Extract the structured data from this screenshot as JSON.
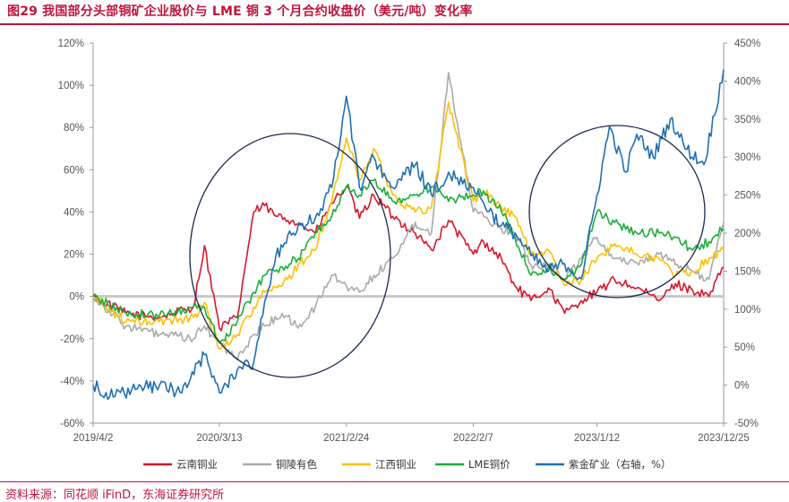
{
  "title": "图29  我国部分头部铜矿企业股价与 LME 铜 3 个月合约收盘价（美元/吨）变化率",
  "source": "资料来源：同花顺 iFinD，东海证券研究所",
  "colors": {
    "title": "#C0143C",
    "yunnan": "#D9172A",
    "tongling": "#AAAAAA",
    "jiangxi": "#FFC000",
    "lme": "#1AAE3A",
    "zijin": "#1F6FB4",
    "zero_line": "#C8C8C8",
    "circle": "#1A2A50"
  },
  "chart_data": {
    "type": "line",
    "x_ticks": [
      "2019/4/2",
      "2020/3/13",
      "2021/2/24",
      "2022/2/7",
      "2023/1/12",
      "2023/12/25"
    ],
    "x_range": [
      "2019/4/2",
      "2023/12/25"
    ],
    "y_left": {
      "ticks": [
        "120%",
        "100%",
        "80%",
        "60%",
        "40%",
        "20%",
        "0%",
        "-20%",
        "-40%",
        "-60%"
      ],
      "ylim": [
        -60,
        120
      ]
    },
    "y_right": {
      "ticks": [
        "450%",
        "400%",
        "350%",
        "300%",
        "250%",
        "200%",
        "150%",
        "100%",
        "50%",
        "0%",
        "-50%"
      ],
      "ylim": [
        -50,
        450
      ]
    },
    "grid": false,
    "legend_position": "bottom",
    "annotations": [
      "circle around 2020/3/13–2021/2/24",
      "circle around 2023/1/12–2023/12/25"
    ],
    "series": [
      {
        "name": "云南铜业",
        "axis": "left",
        "color_key": "yunnan",
        "x": [
          "2019/4/2",
          "2019/7/1",
          "2019/10/1",
          "2020/1/2",
          "2020/2/1",
          "2020/3/13",
          "2020/5/1",
          "2020/6/15",
          "2020/7/15",
          "2020/8/15",
          "2020/10/1",
          "2020/12/1",
          "2021/1/15",
          "2021/2/24",
          "2021/4/1",
          "2021/5/10",
          "2021/7/1",
          "2021/9/1",
          "2021/10/15",
          "2021/12/1",
          "2022/2/7",
          "2022/3/7",
          "2022/4/25",
          "2022/6/1",
          "2022/7/15",
          "2022/9/1",
          "2022/10/15",
          "2022/11/30",
          "2023/1/12",
          "2023/3/1",
          "2023/5/1",
          "2023/7/1",
          "2023/8/15",
          "2023/10/1",
          "2023/11/15",
          "2023/12/25"
        ],
        "y": [
          0,
          -8,
          -10,
          -5,
          24,
          -15,
          -10,
          40,
          43,
          38,
          36,
          30,
          44,
          52,
          37,
          48,
          38,
          30,
          22,
          36,
          20,
          26,
          18,
          5,
          -2,
          4,
          -8,
          -2,
          2,
          8,
          4,
          -2,
          6,
          3,
          0,
          14
        ]
      },
      {
        "name": "铜陵有色",
        "axis": "left",
        "color_key": "tongling",
        "x": [
          "2019/4/2",
          "2019/7/1",
          "2019/10/1",
          "2020/1/2",
          "2020/2/1",
          "2020/3/13",
          "2020/5/1",
          "2020/6/15",
          "2020/7/15",
          "2020/9/1",
          "2020/10/15",
          "2020/12/1",
          "2021/1/15",
          "2021/2/24",
          "2021/4/1",
          "2021/5/10",
          "2021/7/1",
          "2021/9/1",
          "2021/10/15",
          "2021/12/1",
          "2022/2/7",
          "2022/3/7",
          "2022/4/25",
          "2022/6/1",
          "2022/7/15",
          "2022/9/1",
          "2022/10/15",
          "2022/11/30",
          "2023/1/12",
          "2023/3/1",
          "2023/5/1",
          "2023/7/1",
          "2023/8/15",
          "2023/10/1",
          "2023/11/15",
          "2023/12/25"
        ],
        "y": [
          0,
          -14,
          -18,
          -20,
          -14,
          -22,
          -30,
          -18,
          -14,
          -8,
          -15,
          -5,
          10,
          5,
          2,
          10,
          18,
          35,
          30,
          106,
          40,
          38,
          32,
          30,
          15,
          15,
          8,
          18,
          28,
          18,
          16,
          20,
          15,
          12,
          8,
          35
        ]
      },
      {
        "name": "江西铜业",
        "axis": "left",
        "color_key": "jiangxi",
        "x": [
          "2019/4/2",
          "2019/7/1",
          "2019/10/1",
          "2020/1/2",
          "2020/2/1",
          "2020/3/13",
          "2020/5/1",
          "2020/6/15",
          "2020/7/15",
          "2020/9/1",
          "2020/10/15",
          "2020/12/1",
          "2021/1/15",
          "2021/2/24",
          "2021/4/1",
          "2021/5/10",
          "2021/7/1",
          "2021/9/1",
          "2021/10/15",
          "2021/12/1",
          "2022/2/7",
          "2022/3/7",
          "2022/4/25",
          "2022/6/1",
          "2022/7/15",
          "2022/9/1",
          "2022/10/15",
          "2022/11/30",
          "2023/1/12",
          "2023/3/1",
          "2023/5/1",
          "2023/7/1",
          "2023/8/15",
          "2023/10/1",
          "2023/11/15",
          "2023/12/25"
        ],
        "y": [
          0,
          -12,
          -12,
          -10,
          -3,
          -25,
          -18,
          -5,
          2,
          5,
          15,
          22,
          45,
          75,
          55,
          70,
          48,
          40,
          42,
          92,
          45,
          50,
          42,
          38,
          20,
          22,
          5,
          8,
          18,
          25,
          20,
          18,
          10,
          12,
          18,
          22
        ]
      },
      {
        "name": "LME铜价",
        "axis": "left",
        "color_key": "lme",
        "x": [
          "2019/4/2",
          "2019/7/1",
          "2019/10/1",
          "2020/1/2",
          "2020/2/1",
          "2020/3/13",
          "2020/5/1",
          "2020/6/15",
          "2020/7/15",
          "2020/9/1",
          "2020/10/15",
          "2020/12/1",
          "2021/1/15",
          "2021/2/24",
          "2021/4/1",
          "2021/5/10",
          "2021/7/1",
          "2021/9/1",
          "2021/10/15",
          "2021/12/1",
          "2022/2/7",
          "2022/3/7",
          "2022/4/25",
          "2022/6/1",
          "2022/7/15",
          "2022/9/1",
          "2022/10/15",
          "2022/11/30",
          "2023/1/12",
          "2023/3/1",
          "2023/5/1",
          "2023/7/1",
          "2023/8/15",
          "2023/10/1",
          "2023/11/15",
          "2023/12/25"
        ],
        "y": [
          0,
          -8,
          -9,
          -5,
          -5,
          -22,
          -12,
          2,
          10,
          14,
          18,
          30,
          38,
          52,
          48,
          55,
          45,
          48,
          52,
          45,
          48,
          50,
          40,
          28,
          10,
          14,
          8,
          15,
          40,
          35,
          30,
          30,
          28,
          22,
          26,
          32
        ]
      },
      {
        "name": "紫金矿业（右轴，%）",
        "axis": "right",
        "color_key": "zijin",
        "x": [
          "2019/4/2",
          "2019/6/1",
          "2019/8/1",
          "2019/10/1",
          "2019/12/1",
          "2020/2/1",
          "2020/3/13",
          "2020/5/1",
          "2020/6/15",
          "2020/7/15",
          "2020/8/15",
          "2020/10/1",
          "2020/12/1",
          "2021/1/15",
          "2021/2/24",
          "2021/4/1",
          "2021/5/10",
          "2021/7/1",
          "2021/9/1",
          "2021/10/15",
          "2021/12/1",
          "2022/2/7",
          "2022/3/7",
          "2022/4/25",
          "2022/6/1",
          "2022/7/15",
          "2022/9/1",
          "2022/10/15",
          "2022/11/30",
          "2023/1/12",
          "2023/2/15",
          "2023/4/1",
          "2023/5/1",
          "2023/6/15",
          "2023/8/1",
          "2023/9/15",
          "2023/11/1",
          "2023/12/25"
        ],
        "y": [
          0,
          -15,
          -5,
          0,
          -10,
          40,
          -10,
          20,
          30,
          110,
          170,
          200,
          220,
          260,
          380,
          260,
          300,
          260,
          290,
          250,
          280,
          260,
          240,
          210,
          200,
          170,
          150,
          160,
          140,
          250,
          340,
          280,
          330,
          300,
          350,
          310,
          290,
          415
        ]
      }
    ]
  },
  "legend": [
    {
      "label": "云南铜业",
      "color_key": "yunnan"
    },
    {
      "label": "铜陵有色",
      "color_key": "tongling"
    },
    {
      "label": "江西铜业",
      "color_key": "jiangxi"
    },
    {
      "label": "LME铜价",
      "color_key": "lme"
    },
    {
      "label": "紫金矿业（右轴，%）",
      "color_key": "zijin"
    }
  ]
}
